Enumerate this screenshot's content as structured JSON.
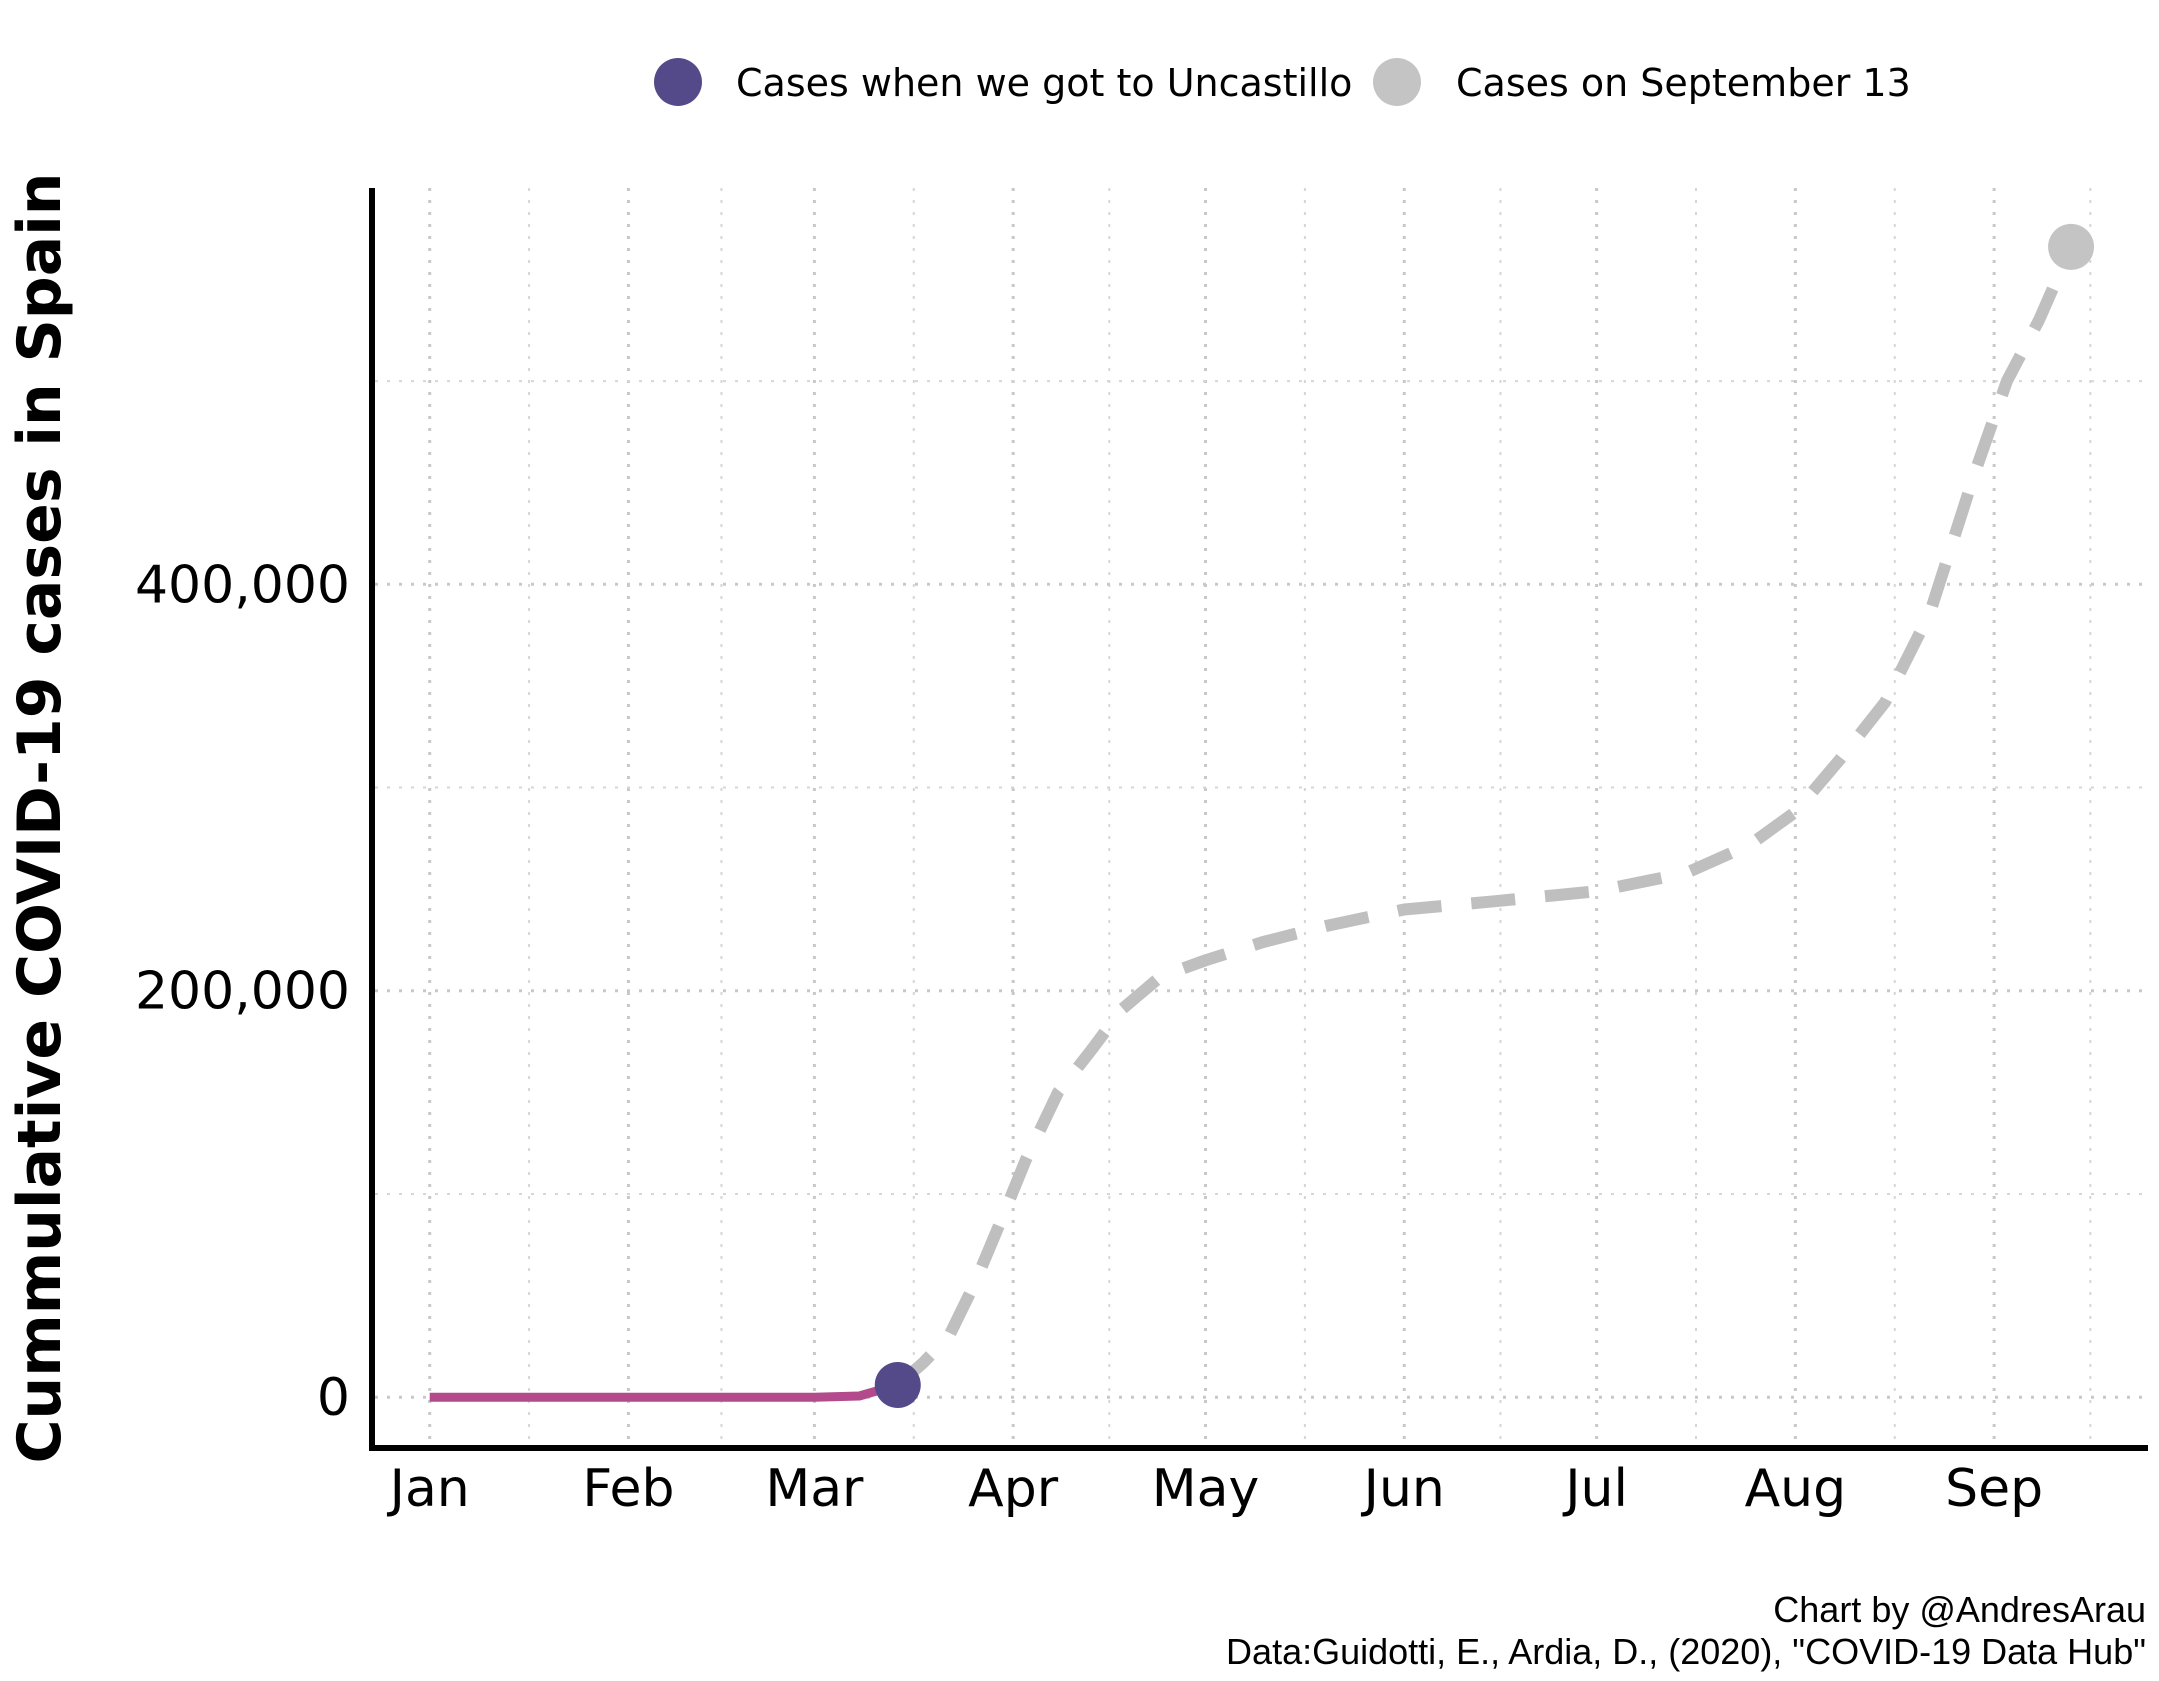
{
  "chart_data": {
    "type": "line",
    "title": "",
    "xlabel": "",
    "ylabel": "Cummulative COVID-19 cases in Spain",
    "x_ticks": [
      "Jan",
      "Feb",
      "Mar",
      "Apr",
      "May",
      "Jun",
      "Jul",
      "Aug",
      "Sep"
    ],
    "x_tick_dates": [
      "2020-01-01",
      "2020-02-01",
      "2020-03-01",
      "2020-04-01",
      "2020-05-01",
      "2020-06-01",
      "2020-07-01",
      "2020-08-01",
      "2020-09-01"
    ],
    "y_ticks": [
      0,
      200000,
      400000
    ],
    "y_tick_labels": [
      "0",
      "200,000",
      "400,000"
    ],
    "xlim": [
      "2019-12-23",
      "2020-09-25"
    ],
    "ylim": [
      -25000,
      595000
    ],
    "grid": true,
    "legend_position": "top",
    "series": [
      {
        "name": "",
        "style": "solid",
        "color": "#b24a8c",
        "points": [
          {
            "x": "2020-01-01",
            "y": 0
          },
          {
            "x": "2020-02-01",
            "y": 0
          },
          {
            "x": "2020-03-01",
            "y": 0
          },
          {
            "x": "2020-03-08",
            "y": 600
          },
          {
            "x": "2020-03-14",
            "y": 6000
          }
        ]
      },
      {
        "name": "",
        "style": "dashed",
        "color": "#bfbfbf",
        "points": [
          {
            "x": "2020-03-14",
            "y": 6000
          },
          {
            "x": "2020-03-18",
            "y": 17000
          },
          {
            "x": "2020-03-22",
            "y": 30000
          },
          {
            "x": "2020-03-26",
            "y": 56000
          },
          {
            "x": "2020-03-30",
            "y": 86000
          },
          {
            "x": "2020-04-03",
            "y": 117000
          },
          {
            "x": "2020-04-08",
            "y": 150000
          },
          {
            "x": "2020-04-13",
            "y": 170000
          },
          {
            "x": "2020-04-18",
            "y": 191000
          },
          {
            "x": "2020-04-24",
            "y": 207000
          },
          {
            "x": "2020-05-01",
            "y": 215000
          },
          {
            "x": "2020-05-10",
            "y": 224000
          },
          {
            "x": "2020-05-20",
            "y": 232000
          },
          {
            "x": "2020-06-01",
            "y": 240000
          },
          {
            "x": "2020-06-15",
            "y": 244000
          },
          {
            "x": "2020-07-01",
            "y": 249000
          },
          {
            "x": "2020-07-15",
            "y": 258000
          },
          {
            "x": "2020-07-25",
            "y": 272000
          },
          {
            "x": "2020-08-01",
            "y": 288000
          },
          {
            "x": "2020-08-08",
            "y": 314000
          },
          {
            "x": "2020-08-15",
            "y": 342000
          },
          {
            "x": "2020-08-22",
            "y": 386000
          },
          {
            "x": "2020-08-29",
            "y": 455000
          },
          {
            "x": "2020-09-03",
            "y": 500000
          },
          {
            "x": "2020-09-08",
            "y": 530000
          },
          {
            "x": "2020-09-13",
            "y": 566000
          }
        ]
      }
    ],
    "highlight_points": [
      {
        "name": "Cases when we got to Uncastillo",
        "x": "2020-03-14",
        "y": 6000,
        "color": "#544a8a"
      },
      {
        "name": "Cases on September 13",
        "x": "2020-09-13",
        "y": 566000,
        "color": "#c4c4c4"
      }
    ],
    "legend": [
      {
        "label": "Cases when we got to Uncastillo",
        "color": "#544a8a"
      },
      {
        "label": "Cases on September 13",
        "color": "#c4c4c4"
      }
    ],
    "caption": [
      "Chart by @AndresArau",
      "Data:Guidotti, E., Ardia, D., (2020), \"COVID-19 Data Hub\""
    ]
  }
}
